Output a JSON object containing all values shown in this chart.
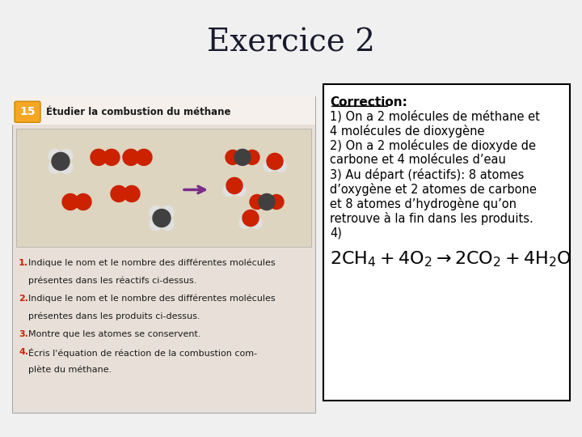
{
  "title": "Exercice 2",
  "title_fontsize": 28,
  "title_color": "#1a1a2e",
  "header_bg_color": "#c8cef0",
  "main_bg_color": "#f0f0f0",
  "correction_title": "Correction:",
  "correction_lines": [
    "1) On a 2 molécules de méthane et",
    "4 molécules de dioxygène",
    "2) On a 2 molécules de dioxyde de",
    "carbone et 4 molécules d’eau",
    "3) Au départ (réactifs): 8 atomes",
    "d’oxygène et 2 atomes de carbone",
    "et 8 atomes d’hydrogène qu’on",
    "retrouve à la fin dans les produits.",
    "4)"
  ],
  "equation_parts": [
    {
      "text": "2CH",
      "style": "normal"
    },
    {
      "text": "4",
      "style": "sub"
    },
    {
      "text": " + 4O",
      "style": "normal"
    },
    {
      "text": "2",
      "style": "sub"
    },
    {
      "text": " → 2CO",
      "style": "normal"
    },
    {
      "text": "2",
      "style": "sub"
    },
    {
      "text": " + 4H",
      "style": "normal"
    },
    {
      "text": "2",
      "style": "sub"
    },
    {
      "text": "O",
      "style": "normal"
    }
  ],
  "box_bg_color": "#ffffff",
  "box_border_color": "#000000",
  "text_fontsize": 10.5,
  "eq_fontsize": 16,
  "correction_title_fontsize": 11
}
